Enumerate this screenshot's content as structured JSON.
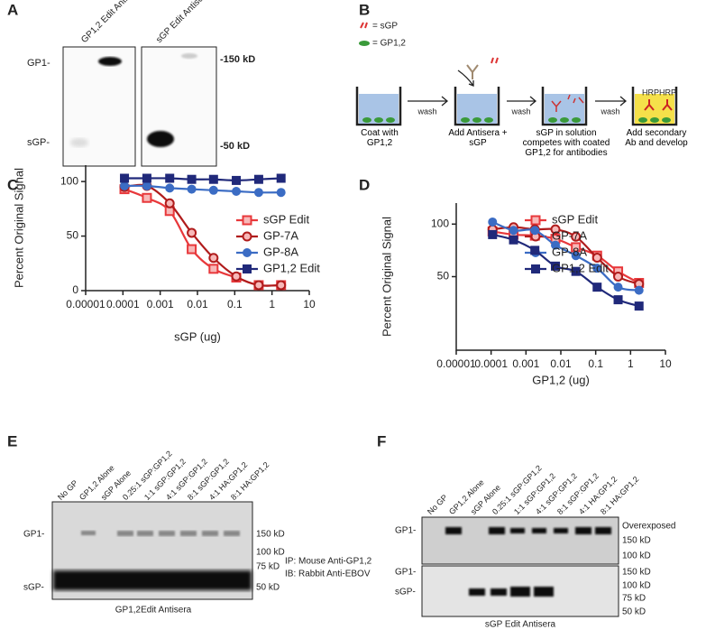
{
  "panel_labels": [
    "A",
    "B",
    "C",
    "D",
    "E",
    "F"
  ],
  "panel_a": {
    "lanes": [
      "GP1,2 Edit Antisera",
      "sGP Edit Antisera"
    ],
    "left_labels": [
      "GP1-",
      "sGP-"
    ],
    "right_labels": [
      "-150 kD",
      "-50 kD"
    ]
  },
  "panel_b": {
    "legend": [
      "= sGP",
      "= GP1,2"
    ],
    "arrow_labels": [
      "wash",
      "wash",
      "wash"
    ],
    "steps": [
      "Coat with GP1,2",
      "Add Antisera + sGP",
      "sGP in solution competes with coated GP1,2 for antibodies",
      "Add secondary Ab and develop"
    ],
    "well_labels": [
      "HRP",
      "HRP"
    ]
  },
  "chart_data": [
    {
      "type": "scatter",
      "x_label": "sGP (ug)",
      "y_label": "Percent Original Signal",
      "log_x": true,
      "x": [
        0.00011,
        0.00044,
        0.0018,
        0.007,
        0.027,
        0.11,
        0.44,
        1.75
      ],
      "xlim": [
        1e-05,
        10
      ],
      "xticks": [
        1e-05,
        0.0001,
        0.001,
        0.01,
        0.1,
        1,
        10
      ],
      "ylim": [
        0,
        115
      ],
      "yticks": [
        0,
        50,
        100
      ],
      "series": [
        {
          "name": "sGP Edit",
          "color": "#e8383b",
          "marker": "square",
          "filled": false,
          "values": [
            93,
            85,
            73,
            38,
            20,
            12,
            5,
            5
          ]
        },
        {
          "name": "GP-7A",
          "color": "#b01c1c",
          "marker": "circle",
          "filled": false,
          "values": [
            95,
            96,
            80,
            53,
            30,
            13,
            5,
            5
          ]
        },
        {
          "name": "GP-8A",
          "color": "#3b6cc4",
          "marker": "circle",
          "filled": true,
          "values": [
            96,
            96,
            94,
            93,
            92,
            91,
            90,
            90
          ]
        },
        {
          "name": "GP1,2 Edit",
          "color": "#20297a",
          "marker": "square",
          "filled": true,
          "values": [
            103,
            103,
            103,
            102,
            102,
            101,
            102,
            103
          ]
        }
      ]
    },
    {
      "type": "scatter",
      "x_label": "GP1,2 (ug)",
      "y_label": "Percent Original Signal",
      "log_x": true,
      "x": [
        0.00011,
        0.00044,
        0.0018,
        0.007,
        0.027,
        0.11,
        0.44,
        1.75
      ],
      "xlim": [
        1e-05,
        10
      ],
      "xticks": [
        1e-05,
        0.0001,
        0.001,
        0.01,
        0.1,
        1,
        10
      ],
      "ylim": [
        -20,
        120
      ],
      "yticks": [
        50,
        100
      ],
      "series": [
        {
          "name": "sGP Edit",
          "color": "#e8383b",
          "marker": "square",
          "filled": false,
          "values": [
            93,
            90,
            89,
            86,
            78,
            70,
            55,
            44
          ]
        },
        {
          "name": "GP-7A",
          "color": "#b01c1c",
          "marker": "circle",
          "filled": false,
          "values": [
            95,
            97,
            95,
            95,
            88,
            68,
            50,
            43
          ]
        },
        {
          "name": "GP-8A",
          "color": "#3b6cc4",
          "marker": "circle",
          "filled": true,
          "values": [
            102,
            94,
            94,
            80,
            70,
            58,
            40,
            37
          ]
        },
        {
          "name": "GP1,2 Edit",
          "color": "#20297a",
          "marker": "square",
          "filled": true,
          "values": [
            90,
            85,
            75,
            60,
            55,
            40,
            28,
            22
          ]
        }
      ]
    }
  ],
  "panel_e": {
    "lanes": [
      "No GP",
      "GP1,2 Alone",
      "sGP Alone",
      "0.25:1 sGP:GP1,2",
      "1:1 sGP:GP1,2",
      "4:1 sGP:GP1,2",
      "8:1 sGP:GP1,2",
      "4:1 HA:GP1,2",
      "8:1 HA:GP1,2"
    ],
    "left_labels": [
      "GP1-",
      "sGP-"
    ],
    "markers": [
      "150 kD",
      "100 kD",
      "75 kD",
      "50 kD"
    ],
    "notes": [
      "IP: Mouse Anti-GP1,2",
      "IB: Rabbit Anti-EBOV"
    ],
    "caption": "GP1,2Edit Antisera"
  },
  "panel_f": {
    "lanes": [
      "No GP",
      "GP1,2 Alone",
      "sGP Alone",
      "0.25:1 sGP:GP1,2",
      "1:1 sGP:GP1,2",
      "4:1 sGP:GP1,2",
      "8:1 sGP:GP1,2",
      "4:1 HA:GP1,2",
      "8:1 HA:GP1,2"
    ],
    "left_labels": [
      "GP1-",
      "GP1-",
      "sGP-"
    ],
    "top_markers": [
      "Overexposed",
      "150 kD",
      "100 kD"
    ],
    "bottom_markers": [
      "150 kD",
      "100 kD",
      "75 kD",
      "50 kD"
    ],
    "caption": "sGP Edit Antisera"
  }
}
